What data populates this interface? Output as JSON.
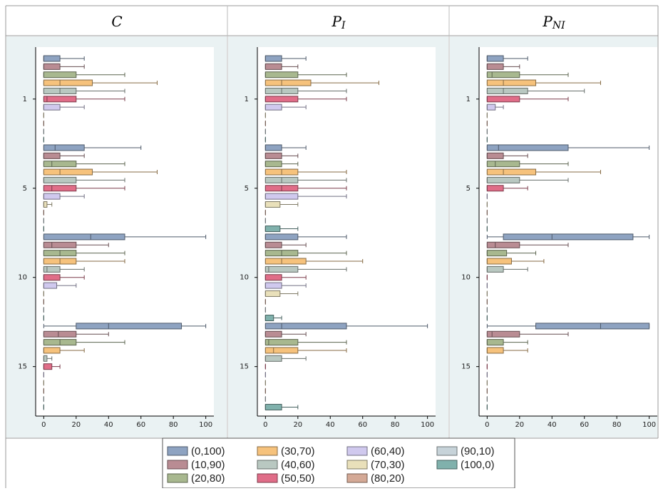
{
  "legend": [
    {
      "name": "(0,100)",
      "color": "#8ea3c1"
    },
    {
      "name": "(10,90)",
      "color": "#b98c93"
    },
    {
      "name": "(20,80)",
      "color": "#a8b88f"
    },
    {
      "name": "(30,70)",
      "color": "#f6c27c"
    },
    {
      "name": "(40,60)",
      "color": "#b9c8c1"
    },
    {
      "name": "(50,50)",
      "color": "#e06d88"
    },
    {
      "name": "(60,40)",
      "color": "#d0c9ee"
    },
    {
      "name": "(70,30)",
      "color": "#e9e0ba"
    },
    {
      "name": "(80,20)",
      "color": "#d4a996"
    },
    {
      "name": "(90,10)",
      "color": "#c7d3d9"
    },
    {
      "name": "(100,0)",
      "color": "#80b1ac"
    }
  ],
  "chart_data": [
    {
      "type": "box",
      "title": "C",
      "categories": [
        "1",
        "5",
        "10",
        "15"
      ],
      "xlim": [
        -5,
        105
      ],
      "xticks": [
        0,
        20,
        40,
        60,
        80,
        100
      ],
      "series": [
        {
          "values": [
            [
              0,
              0,
              0,
              10,
              25
            ],
            [
              0,
              0,
              7,
              25,
              60
            ],
            [
              0,
              0,
              29,
              50,
              100
            ],
            [
              0,
              20,
              40,
              85,
              100
            ]
          ]
        },
        {
          "values": [
            [
              0,
              0,
              0,
              10,
              25
            ],
            [
              0,
              0,
              0,
              10,
              25
            ],
            [
              0,
              0,
              5,
              20,
              40
            ],
            [
              0,
              0,
              9,
              20,
              40
            ]
          ]
        },
        {
          "values": [
            [
              0,
              0,
              0,
              20,
              50
            ],
            [
              0,
              0,
              5,
              20,
              50
            ],
            [
              0,
              0,
              10,
              20,
              50
            ],
            [
              0,
              0,
              10,
              20,
              50
            ]
          ]
        },
        {
          "values": [
            [
              0,
              0,
              10,
              30,
              70
            ],
            [
              0,
              0,
              10,
              30,
              70
            ],
            [
              0,
              0,
              10,
              20,
              50
            ],
            [
              0,
              0,
              0,
              10,
              25
            ]
          ]
        },
        {
          "values": [
            [
              0,
              0,
              10,
              20,
              50
            ],
            [
              0,
              0,
              0,
              20,
              50
            ],
            [
              0,
              0,
              2,
              10,
              25
            ],
            [
              0,
              0,
              0,
              2,
              5
            ]
          ]
        },
        {
          "values": [
            [
              0,
              0,
              2,
              20,
              50
            ],
            [
              0,
              0,
              5,
              20,
              50
            ],
            [
              0,
              0,
              0,
              10,
              25
            ],
            [
              0,
              0,
              0,
              5,
              10
            ]
          ]
        },
        {
          "values": [
            [
              0,
              0,
              0,
              10,
              25
            ],
            [
              0,
              0,
              0,
              10,
              25
            ],
            [
              0,
              0,
              0,
              8,
              20
            ],
            [
              0,
              0,
              0,
              0,
              0
            ]
          ]
        },
        {
          "values": [
            [
              0,
              0,
              0,
              0,
              0
            ],
            [
              0,
              0,
              0,
              2,
              5
            ],
            [
              0,
              0,
              0,
              0,
              0
            ],
            [
              0,
              0,
              0,
              0,
              0
            ]
          ]
        },
        {
          "values": [
            [
              0,
              0,
              0,
              0,
              0
            ],
            [
              0,
              0,
              0,
              0,
              0
            ],
            [
              0,
              0,
              0,
              0,
              0
            ],
            [
              0,
              0,
              0,
              0,
              0
            ]
          ]
        },
        {
          "values": [
            [
              0,
              0,
              0,
              0,
              0
            ],
            [
              0,
              0,
              0,
              0,
              0
            ],
            [
              0,
              0,
              0,
              0,
              0
            ],
            [
              0,
              0,
              0,
              0,
              0
            ]
          ]
        },
        {
          "values": [
            [
              0,
              0,
              0,
              0,
              0
            ],
            [
              0,
              0,
              0,
              0,
              0
            ],
            [
              0,
              0,
              0,
              0,
              0
            ],
            [
              0,
              0,
              0,
              0,
              0
            ]
          ]
        }
      ]
    },
    {
      "type": "box",
      "title": "P",
      "subscript": "I",
      "categories": [
        "1",
        "5",
        "10",
        "15"
      ],
      "xlim": [
        -5,
        105
      ],
      "xticks": [
        0,
        20,
        40,
        60,
        80,
        100
      ],
      "series": [
        {
          "values": [
            [
              0,
              0,
              0,
              10,
              25
            ],
            [
              0,
              0,
              0,
              10,
              25
            ],
            [
              0,
              0,
              0,
              20,
              50
            ],
            [
              0,
              0,
              10,
              50,
              100
            ]
          ]
        },
        {
          "values": [
            [
              0,
              0,
              0,
              10,
              20
            ],
            [
              0,
              0,
              0,
              10,
              20
            ],
            [
              0,
              0,
              0,
              10,
              25
            ],
            [
              0,
              0,
              0,
              10,
              25
            ]
          ]
        },
        {
          "values": [
            [
              0,
              0,
              0,
              20,
              50
            ],
            [
              0,
              0,
              0,
              10,
              20
            ],
            [
              0,
              0,
              10,
              20,
              50
            ],
            [
              0,
              0,
              2,
              20,
              50
            ]
          ]
        },
        {
          "values": [
            [
              0,
              0,
              10,
              28,
              70
            ],
            [
              0,
              0,
              10,
              20,
              50
            ],
            [
              0,
              0,
              10,
              25,
              60
            ],
            [
              0,
              0,
              5,
              20,
              50
            ]
          ]
        },
        {
          "values": [
            [
              0,
              0,
              10,
              20,
              50
            ],
            [
              0,
              0,
              10,
              20,
              50
            ],
            [
              0,
              0,
              2,
              20,
              50
            ],
            [
              0,
              0,
              0,
              10,
              25
            ]
          ]
        },
        {
          "values": [
            [
              0,
              0,
              0,
              20,
              50
            ],
            [
              0,
              0,
              10,
              20,
              50
            ],
            [
              0,
              0,
              0,
              10,
              25
            ],
            [
              0,
              0,
              0,
              0,
              0
            ]
          ]
        },
        {
          "values": [
            [
              0,
              0,
              0,
              10,
              25
            ],
            [
              0,
              0,
              0,
              20,
              50
            ],
            [
              0,
              0,
              0,
              10,
              25
            ],
            [
              0,
              0,
              0,
              0,
              0
            ]
          ]
        },
        {
          "values": [
            [
              0,
              0,
              0,
              0,
              0
            ],
            [
              0,
              0,
              0,
              9,
              20
            ],
            [
              0,
              0,
              0,
              9,
              20
            ],
            [
              0,
              0,
              0,
              0,
              0
            ]
          ]
        },
        {
          "values": [
            [
              0,
              0,
              0,
              0,
              0
            ],
            [
              0,
              0,
              0,
              0,
              0
            ],
            [
              0,
              0,
              0,
              0,
              0
            ],
            [
              0,
              0,
              0,
              0,
              0
            ]
          ]
        },
        {
          "values": [
            [
              0,
              0,
              0,
              0,
              0
            ],
            [
              0,
              0,
              0,
              0,
              0
            ],
            [
              0,
              0,
              0,
              0,
              0
            ],
            [
              0,
              0,
              0,
              0,
              0
            ]
          ]
        },
        {
          "values": [
            [
              0,
              0,
              0,
              0,
              0
            ],
            [
              0,
              0,
              0,
              9,
              20
            ],
            [
              0,
              0,
              0,
              5,
              10
            ],
            [
              0,
              0,
              0,
              10,
              20
            ]
          ]
        }
      ]
    },
    {
      "type": "box",
      "title": "P",
      "subscript": "NI",
      "categories": [
        "1",
        "5",
        "10",
        "15"
      ],
      "xlim": [
        -5,
        105
      ],
      "xticks": [
        0,
        20,
        40,
        60,
        80,
        100
      ],
      "series": [
        {
          "values": [
            [
              0,
              0,
              0,
              10,
              25
            ],
            [
              0,
              0,
              7,
              50,
              100
            ],
            [
              0,
              10,
              40,
              90,
              100
            ],
            [
              0,
              30,
              70,
              100,
              100
            ]
          ]
        },
        {
          "values": [
            [
              0,
              0,
              0,
              10,
              20
            ],
            [
              0,
              0,
              0,
              10,
              25
            ],
            [
              0,
              0,
              5,
              20,
              50
            ],
            [
              0,
              0,
              3,
              20,
              50
            ]
          ]
        },
        {
          "values": [
            [
              0,
              0,
              3,
              20,
              50
            ],
            [
              0,
              0,
              5,
              20,
              50
            ],
            [
              0,
              0,
              0,
              12,
              30
            ],
            [
              0,
              0,
              0,
              10,
              25
            ]
          ]
        },
        {
          "values": [
            [
              0,
              0,
              10,
              30,
              70
            ],
            [
              0,
              0,
              10,
              30,
              70
            ],
            [
              0,
              0,
              0,
              15,
              35
            ],
            [
              0,
              0,
              0,
              10,
              25
            ]
          ]
        },
        {
          "values": [
            [
              0,
              0,
              10,
              25,
              60
            ],
            [
              0,
              0,
              0,
              20,
              50
            ],
            [
              0,
              0,
              0,
              10,
              25
            ],
            [
              0,
              0,
              0,
              0,
              0
            ]
          ]
        },
        {
          "values": [
            [
              0,
              0,
              0,
              20,
              50
            ],
            [
              0,
              0,
              0,
              10,
              25
            ],
            [
              0,
              0,
              0,
              0,
              0
            ],
            [
              0,
              0,
              0,
              0,
              0
            ]
          ]
        },
        {
          "values": [
            [
              0,
              0,
              0,
              5,
              10
            ],
            [
              0,
              0,
              0,
              0,
              0
            ],
            [
              0,
              0,
              0,
              0,
              0
            ],
            [
              0,
              0,
              0,
              0,
              0
            ]
          ]
        },
        {
          "values": [
            [
              0,
              0,
              0,
              0,
              0
            ],
            [
              0,
              0,
              0,
              0,
              0
            ],
            [
              0,
              0,
              0,
              0,
              0
            ],
            [
              0,
              0,
              0,
              0,
              0
            ]
          ]
        },
        {
          "values": [
            [
              0,
              0,
              0,
              0,
              0
            ],
            [
              0,
              0,
              0,
              0,
              0
            ],
            [
              0,
              0,
              0,
              0,
              0
            ],
            [
              0,
              0,
              0,
              0,
              0
            ]
          ]
        },
        {
          "values": [
            [
              0,
              0,
              0,
              0,
              0
            ],
            [
              0,
              0,
              0,
              0,
              0
            ],
            [
              0,
              0,
              0,
              0,
              0
            ],
            [
              0,
              0,
              0,
              0,
              0
            ]
          ]
        },
        {
          "values": [
            [
              0,
              0,
              0,
              0,
              0
            ],
            [
              0,
              0,
              0,
              0,
              0
            ],
            [
              0,
              0,
              0,
              0,
              0
            ],
            [
              0,
              0,
              0,
              0,
              0
            ]
          ]
        }
      ]
    }
  ]
}
